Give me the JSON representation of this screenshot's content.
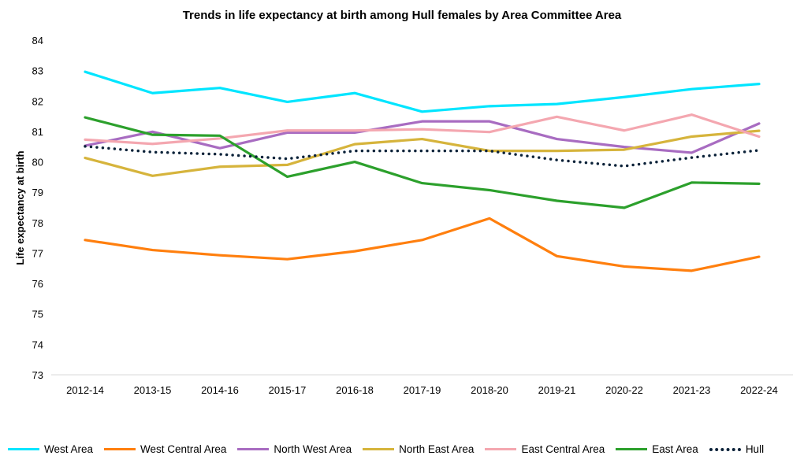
{
  "chart_data": {
    "type": "line",
    "title": "Trends in life expectancy at birth among Hull females by Area Committee Area",
    "xlabel": "",
    "ylabel": "Life expectancy at birth",
    "ylim": [
      73,
      84
    ],
    "yticks": [
      73,
      74,
      75,
      76,
      77,
      78,
      79,
      80,
      81,
      82,
      83,
      84
    ],
    "grid": false,
    "legend_position": "bottom",
    "categories": [
      "2012-14",
      "2013-15",
      "2014-16",
      "2015-17",
      "2016-18",
      "2017-19",
      "2018-20",
      "2019-21",
      "2020-22",
      "2021-23",
      "2022-24"
    ],
    "series": [
      {
        "name": "West Area",
        "color": "#00E5FF",
        "style": "solid",
        "values": [
          82.96,
          82.26,
          82.43,
          81.97,
          82.26,
          81.65,
          81.83,
          81.9,
          82.13,
          82.39,
          82.56
        ]
      },
      {
        "name": "West Central Area",
        "color": "#FF7F0E",
        "style": "solid",
        "values": [
          77.43,
          77.1,
          76.93,
          76.8,
          77.06,
          77.43,
          78.14,
          76.9,
          76.56,
          76.42,
          76.88
        ]
      },
      {
        "name": "North West Area",
        "color": "#A86CC1",
        "style": "solid",
        "values": [
          80.53,
          80.99,
          80.45,
          80.96,
          80.96,
          81.33,
          81.33,
          80.75,
          80.49,
          80.3,
          81.26
        ]
      },
      {
        "name": "North East Area",
        "color": "#D6B43C",
        "style": "solid",
        "values": [
          80.13,
          79.54,
          79.84,
          79.9,
          80.58,
          80.75,
          80.36,
          80.36,
          80.4,
          80.83,
          81.02
        ]
      },
      {
        "name": "East Central Area",
        "color": "#F4A7B0",
        "style": "solid",
        "values": [
          80.73,
          80.59,
          80.77,
          81.03,
          81.03,
          81.07,
          80.98,
          81.48,
          81.03,
          81.55,
          80.83
        ]
      },
      {
        "name": "East Area",
        "color": "#2CA02C",
        "style": "solid",
        "values": [
          81.46,
          80.89,
          80.86,
          79.51,
          80.0,
          79.3,
          79.07,
          78.72,
          78.49,
          79.32,
          79.28
        ]
      },
      {
        "name": "Hull",
        "color": "#0B2239",
        "style": "dotted",
        "values": [
          80.51,
          80.32,
          80.25,
          80.1,
          80.36,
          80.36,
          80.36,
          80.06,
          79.86,
          80.14,
          80.38
        ]
      }
    ]
  }
}
